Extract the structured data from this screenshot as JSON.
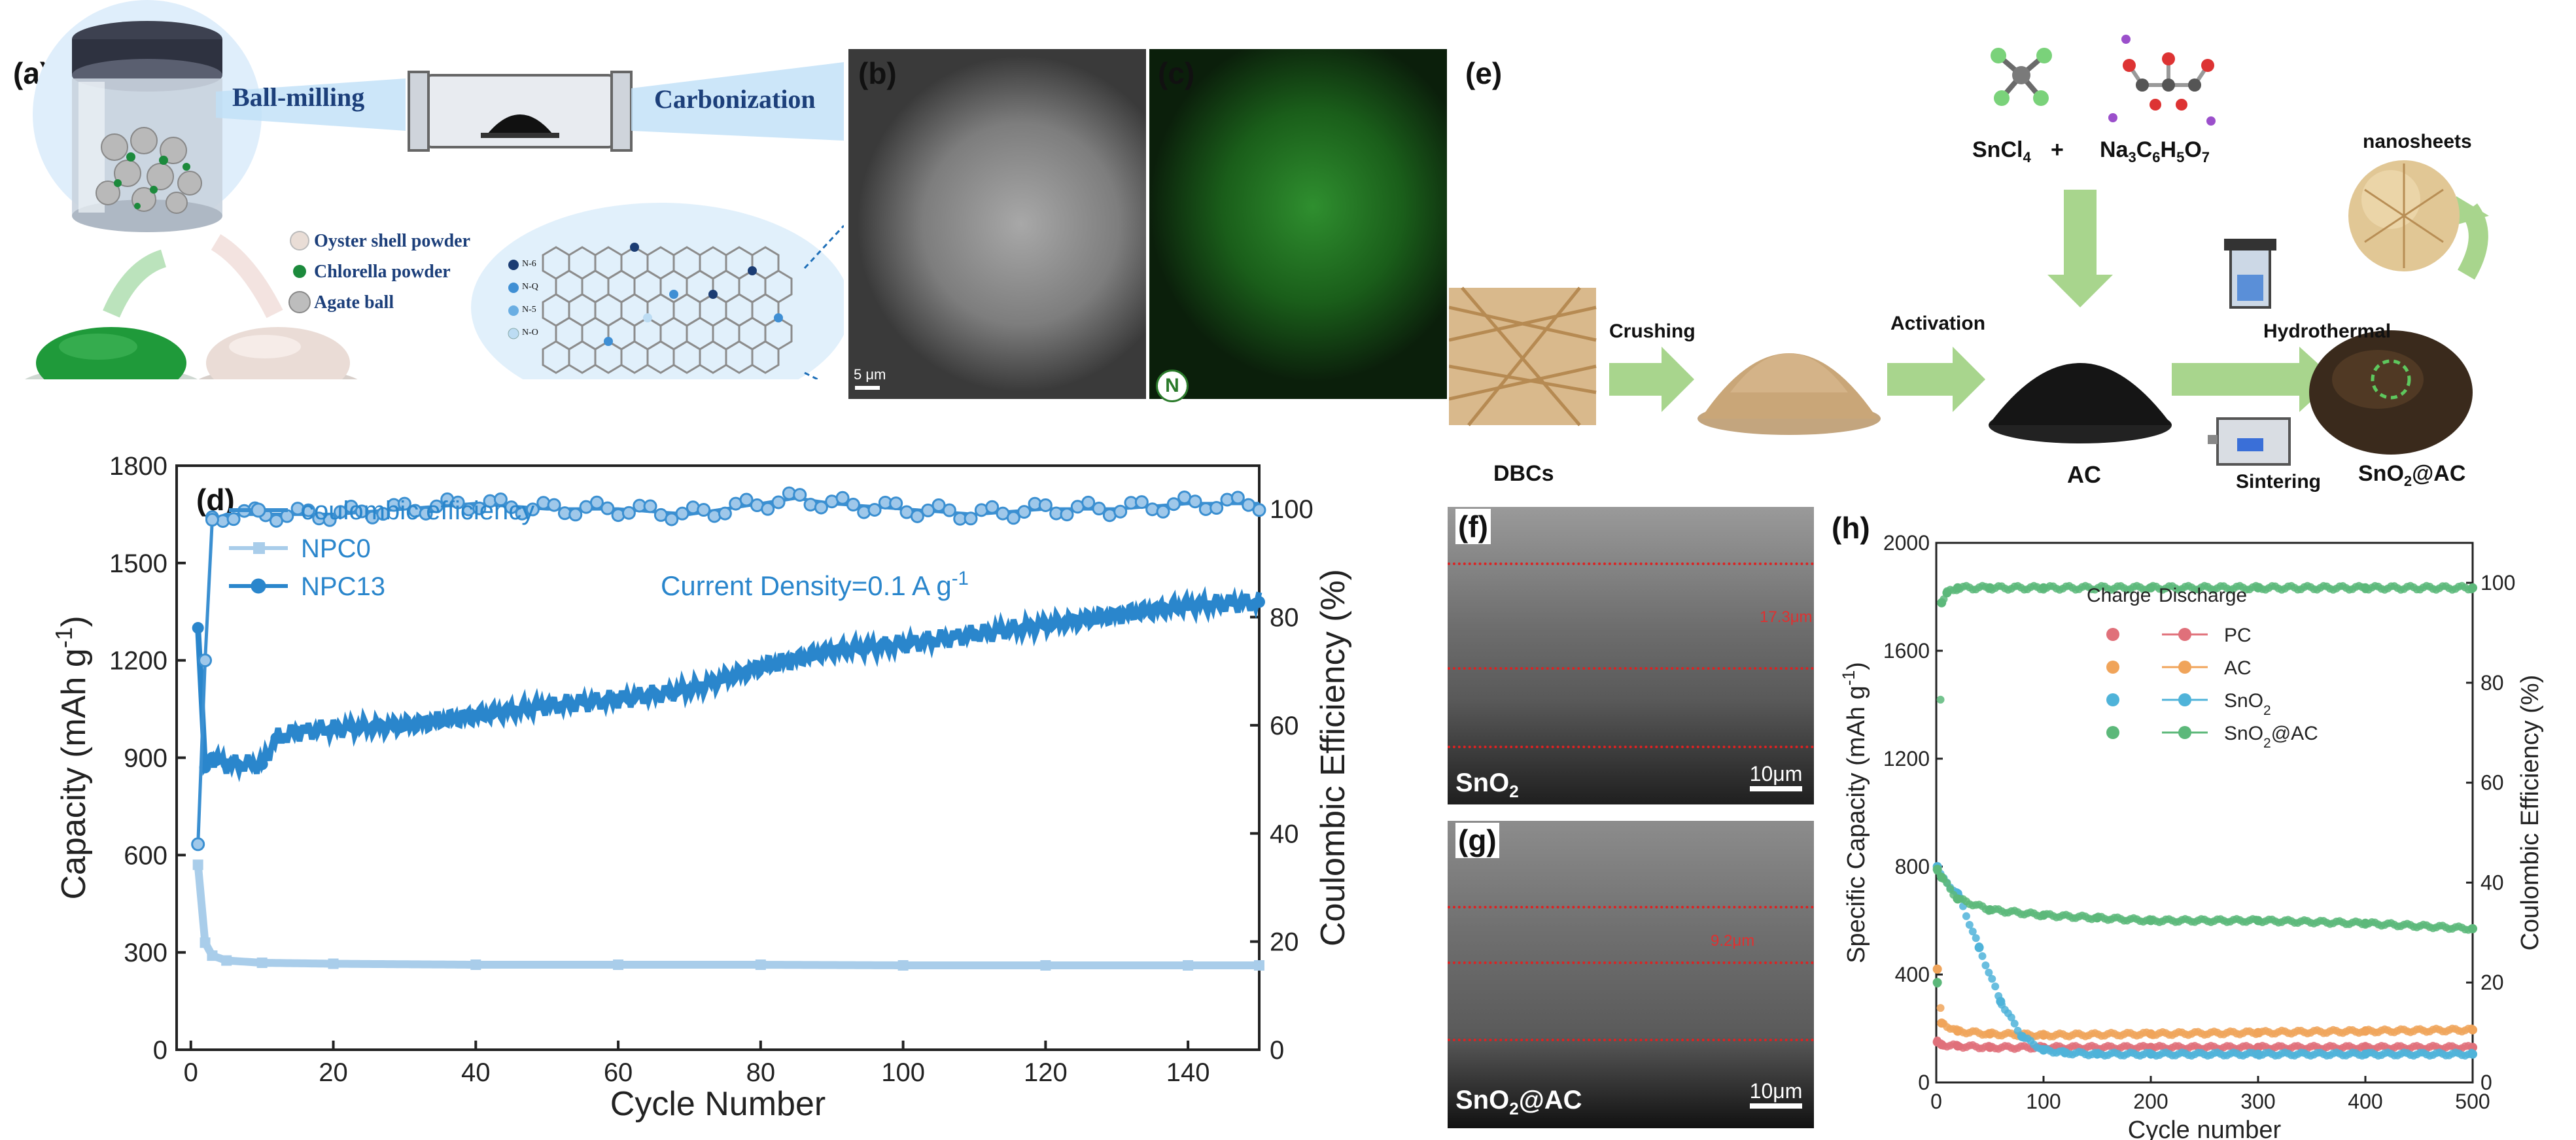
{
  "panel_labels": {
    "a": "(a)",
    "b": "(b)",
    "c": "(c)",
    "d": "(d)",
    "e": "(e)",
    "f": "(f)",
    "g": "(g)",
    "h": "(h)"
  },
  "panel_a": {
    "step1": "Ball-milling",
    "step2": "Carbonization",
    "legend": [
      "Oyster shell powder",
      "Chlorella powder",
      "Agate ball"
    ],
    "dopant_labels": [
      "N-6",
      "N-Q",
      "N-5",
      "N-O"
    ]
  },
  "panel_b": {
    "scale_text": "5 μm"
  },
  "panel_c": {
    "element": "N"
  },
  "panel_e": {
    "start": "DBCs",
    "step_crushing": "Crushing",
    "step_activation": "Activation",
    "step_hydrothermal": "Hydrothermal",
    "step_sintering": "Sintering",
    "reagent1": "SnCl4",
    "plus": "+",
    "reagent2": "Na3C6H5O7",
    "ac": "AC",
    "product": "SnO2@AC",
    "nanosheets": "nanosheets"
  },
  "panel_f": {
    "thickness": "17.3μm",
    "scale": "10μm",
    "material": "SnO2"
  },
  "panel_g": {
    "thickness": "9.2μm",
    "scale": "10μm",
    "material": "SnO2@AC"
  },
  "chart_data": [
    {
      "id": "d",
      "type": "line",
      "xlabel": "Cycle Number",
      "ylabel": "Capacity (mAh g-1)",
      "ylabel_right": "Coulombic Efficiency (%)",
      "xlim": [
        -2,
        150
      ],
      "ylim": [
        0,
        1800
      ],
      "ylim_right": [
        0,
        108
      ],
      "xticks": [
        0,
        20,
        40,
        60,
        80,
        100,
        120,
        140
      ],
      "yticks": [
        0,
        300,
        600,
        900,
        1200,
        1500,
        1800
      ],
      "yticks_right": [
        0,
        20,
        40,
        60,
        80,
        100
      ],
      "annotation": "Current Density=0.1 A g-1",
      "legend_position": "top-left",
      "legend": [
        "coulombic efficiency",
        "NPC0",
        "NPC13"
      ],
      "colors": {
        "ce": "#3a8fd1",
        "npc0": "#a9cdea",
        "npc13": "#2a86cc"
      },
      "series": [
        {
          "name": "coulombic efficiency",
          "axis": "right",
          "x": [
            1,
            2,
            3,
            5,
            10,
            20,
            30,
            40,
            50,
            60,
            70,
            80,
            85,
            90,
            100,
            110,
            120,
            130,
            140,
            150
          ],
          "values": [
            38,
            72,
            98,
            99,
            99,
            99,
            100,
            101,
            100,
            100,
            99,
            101,
            102,
            101,
            100,
            99,
            100,
            100,
            101,
            101
          ]
        },
        {
          "name": "NPC0",
          "axis": "left",
          "x": [
            1,
            2,
            3,
            5,
            10,
            20,
            40,
            60,
            80,
            100,
            120,
            140,
            150
          ],
          "values": [
            570,
            330,
            290,
            275,
            268,
            265,
            262,
            262,
            262,
            260,
            260,
            260,
            260
          ]
        },
        {
          "name": "NPC13",
          "axis": "left",
          "x": [
            1,
            2,
            3,
            5,
            10,
            12,
            15,
            20,
            30,
            40,
            50,
            60,
            70,
            80,
            90,
            100,
            110,
            120,
            130,
            140,
            150
          ],
          "values": [
            1300,
            870,
            900,
            880,
            880,
            960,
            980,
            990,
            1000,
            1030,
            1060,
            1080,
            1110,
            1180,
            1230,
            1250,
            1280,
            1310,
            1340,
            1370,
            1380
          ]
        }
      ]
    },
    {
      "id": "h",
      "type": "scatter",
      "xlabel": "Cycle number",
      "ylabel": "Specific Capacity (mAh g-1)",
      "ylabel_right": "Coulombic Efficiency (%)",
      "xlim": [
        0,
        500
      ],
      "ylim": [
        0,
        2000
      ],
      "ylim_right": [
        0,
        108
      ],
      "xticks": [
        0,
        100,
        200,
        300,
        400,
        500
      ],
      "yticks": [
        0,
        400,
        800,
        1200,
        1600,
        2000
      ],
      "yticks_right": [
        0,
        20,
        40,
        60,
        80,
        100
      ],
      "legend_headers": [
        "Charge",
        "Discharge"
      ],
      "legend_position": "center",
      "series": [
        {
          "name": "PC",
          "color": "#e0707a",
          "x": [
            1,
            5,
            20,
            50,
            100,
            200,
            300,
            400,
            500
          ],
          "values": [
            150,
            140,
            135,
            130,
            130,
            130,
            130,
            130,
            130
          ]
        },
        {
          "name": "AC",
          "color": "#f0a45a",
          "x": [
            1,
            5,
            20,
            50,
            100,
            200,
            300,
            400,
            500
          ],
          "values": [
            420,
            220,
            190,
            180,
            175,
            180,
            185,
            190,
            195
          ]
        },
        {
          "name": "SnO2",
          "color": "#4fb3d9",
          "x": [
            1,
            5,
            20,
            40,
            60,
            80,
            100,
            120,
            150,
            200,
            300,
            400,
            500
          ],
          "values": [
            800,
            760,
            700,
            500,
            300,
            170,
            120,
            110,
            105,
            105,
            105,
            105,
            105
          ]
        },
        {
          "name": "SnO2@AC",
          "color": "#5cb87a",
          "x": [
            1,
            5,
            20,
            50,
            100,
            150,
            200,
            300,
            400,
            500
          ],
          "values": [
            790,
            760,
            680,
            640,
            620,
            610,
            600,
            600,
            590,
            570
          ]
        },
        {
          "name": "SnO2@AC CE",
          "color": "#5cb87a",
          "axis": "right",
          "x": [
            1,
            5,
            10,
            20,
            50,
            100,
            200,
            300,
            400,
            500
          ],
          "values": [
            20,
            96,
            98,
            99,
            99,
            99,
            99,
            99,
            99,
            99
          ]
        }
      ]
    }
  ]
}
